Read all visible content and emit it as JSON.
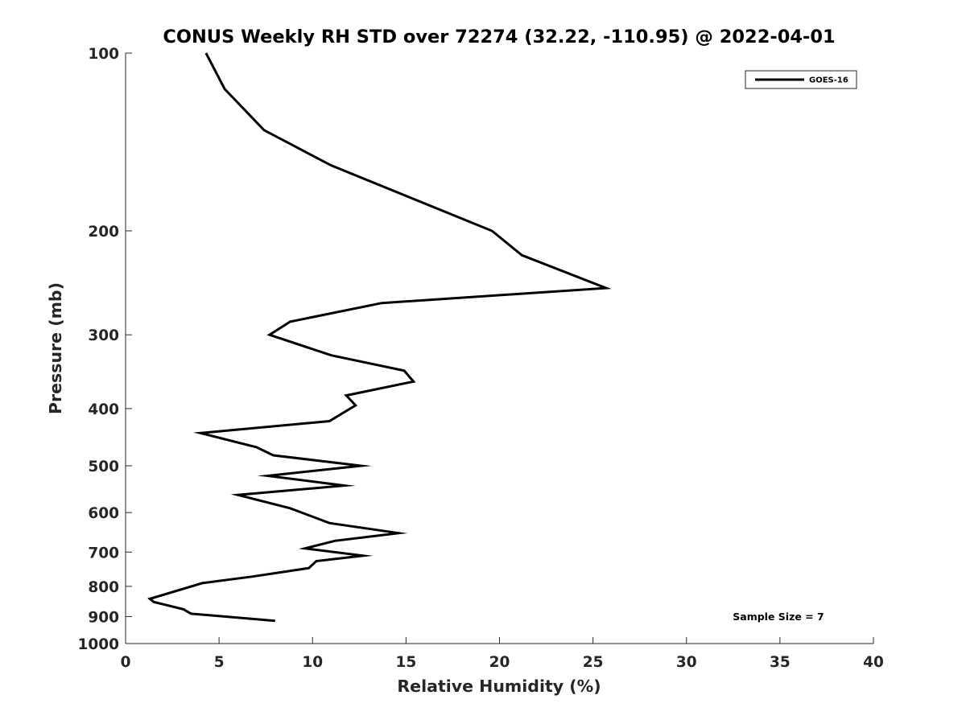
{
  "chart_data": {
    "type": "line",
    "title": "CONUS Weekly RH STD over 72274 (32.22, -110.95) @ 2022-04-01",
    "xlabel": "Relative Humidity (%)",
    "ylabel": "Pressure (mb)",
    "xlim": [
      0,
      40
    ],
    "ylim": [
      100,
      1000
    ],
    "y_scale": "log",
    "y_direction": "reversed",
    "x_ticks": [
      0,
      5,
      10,
      15,
      20,
      25,
      30,
      35,
      40
    ],
    "x_tick_labels": [
      "0",
      "5",
      "10",
      "15",
      "20",
      "25",
      "30",
      "35",
      "40"
    ],
    "y_ticks": [
      100,
      200,
      300,
      400,
      500,
      600,
      700,
      800,
      900,
      1000
    ],
    "y_tick_labels": [
      "100",
      "200",
      "300",
      "400",
      "500",
      "600",
      "700",
      "800",
      "900",
      "1000"
    ],
    "grid": false,
    "legend": {
      "position": "top-right",
      "entries": [
        "GOES-16"
      ]
    },
    "annotation": "Sample Size = 7",
    "series": [
      {
        "name": "GOES-16",
        "color": "#000000",
        "x": [
          4.3,
          5.3,
          7.4,
          11.0,
          19.6,
          21.2,
          25.7,
          13.7,
          8.8,
          7.7,
          11.0,
          14.9,
          15.4,
          11.8,
          12.3,
          10.9,
          4.0,
          7.0,
          7.9,
          12.6,
          7.6,
          11.7,
          6.0,
          8.8,
          10.9,
          14.6,
          11.2,
          9.6,
          12.7,
          10.2,
          9.8,
          6.8,
          4.1,
          1.3,
          1.5,
          3.1,
          3.5,
          8.0
        ],
        "y": [
          100,
          115,
          135,
          155,
          200,
          220,
          250,
          265,
          285,
          300,
          325,
          345,
          360,
          380,
          395,
          420,
          440,
          465,
          480,
          500,
          520,
          540,
          560,
          590,
          625,
          650,
          670,
          690,
          710,
          725,
          745,
          770,
          790,
          840,
          850,
          875,
          890,
          915
        ]
      }
    ]
  }
}
